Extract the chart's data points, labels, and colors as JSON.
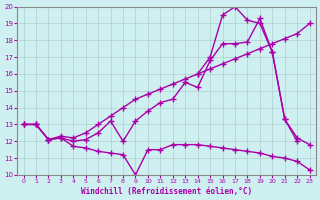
{
  "xlabel": "Windchill (Refroidissement éolien,°C)",
  "bg_color": "#cff0f0",
  "grid_color": "#b0d0d0",
  "line_color": "#aa00aa",
  "marker": "+",
  "markersize": 5,
  "linewidth": 1.0,
  "xlim": [
    -0.5,
    23.5
  ],
  "ylim": [
    10,
    20
  ],
  "xticks": [
    0,
    1,
    2,
    3,
    4,
    5,
    6,
    7,
    8,
    9,
    10,
    11,
    12,
    13,
    14,
    15,
    16,
    17,
    18,
    19,
    20,
    21,
    22,
    23
  ],
  "yticks": [
    10,
    11,
    12,
    13,
    14,
    15,
    16,
    17,
    18,
    19,
    20
  ],
  "lineA_x": [
    0,
    1,
    2,
    3,
    4,
    5,
    6,
    7,
    8,
    9,
    10,
    11,
    12,
    13,
    14,
    15,
    16,
    17,
    18,
    19,
    20,
    21,
    22
  ],
  "lineA_y": [
    13.0,
    13.0,
    12.1,
    12.2,
    12.0,
    12.1,
    12.5,
    13.2,
    12.0,
    13.2,
    13.8,
    14.3,
    14.5,
    15.5,
    15.2,
    16.8,
    17.8,
    17.8,
    17.9,
    19.3,
    17.3,
    13.3,
    12.0
  ],
  "lineB_x": [
    0,
    1,
    2,
    3,
    4,
    5,
    6,
    7,
    8,
    9,
    10,
    11,
    12,
    13,
    14,
    15,
    16,
    17,
    18,
    19,
    20,
    21,
    22,
    23
  ],
  "lineB_y": [
    13.0,
    13.0,
    12.1,
    12.3,
    12.2,
    12.5,
    13.0,
    13.5,
    14.0,
    14.5,
    14.8,
    15.1,
    15.4,
    15.7,
    16.0,
    16.3,
    16.6,
    16.9,
    17.2,
    17.5,
    17.8,
    18.1,
    18.4,
    19.0
  ],
  "lineC_x": [
    0,
    1,
    2,
    3,
    4,
    5,
    6,
    7,
    8,
    9,
    10,
    11,
    12,
    13,
    14,
    15,
    16,
    17,
    18,
    19,
    20,
    21,
    22,
    23
  ],
  "lineC_y": [
    13.0,
    13.0,
    12.1,
    12.2,
    11.7,
    11.6,
    11.4,
    11.3,
    11.2,
    10.0,
    11.5,
    11.5,
    11.8,
    11.8,
    11.8,
    11.7,
    11.6,
    11.5,
    11.4,
    11.3,
    11.1,
    11.0,
    10.8,
    10.3
  ],
  "lineD_x": [
    14,
    15,
    16,
    17,
    18,
    19,
    20,
    21,
    22,
    23
  ],
  "lineD_y": [
    16.0,
    17.0,
    19.5,
    20.0,
    19.2,
    19.0,
    17.3,
    13.3,
    12.2,
    11.8
  ]
}
